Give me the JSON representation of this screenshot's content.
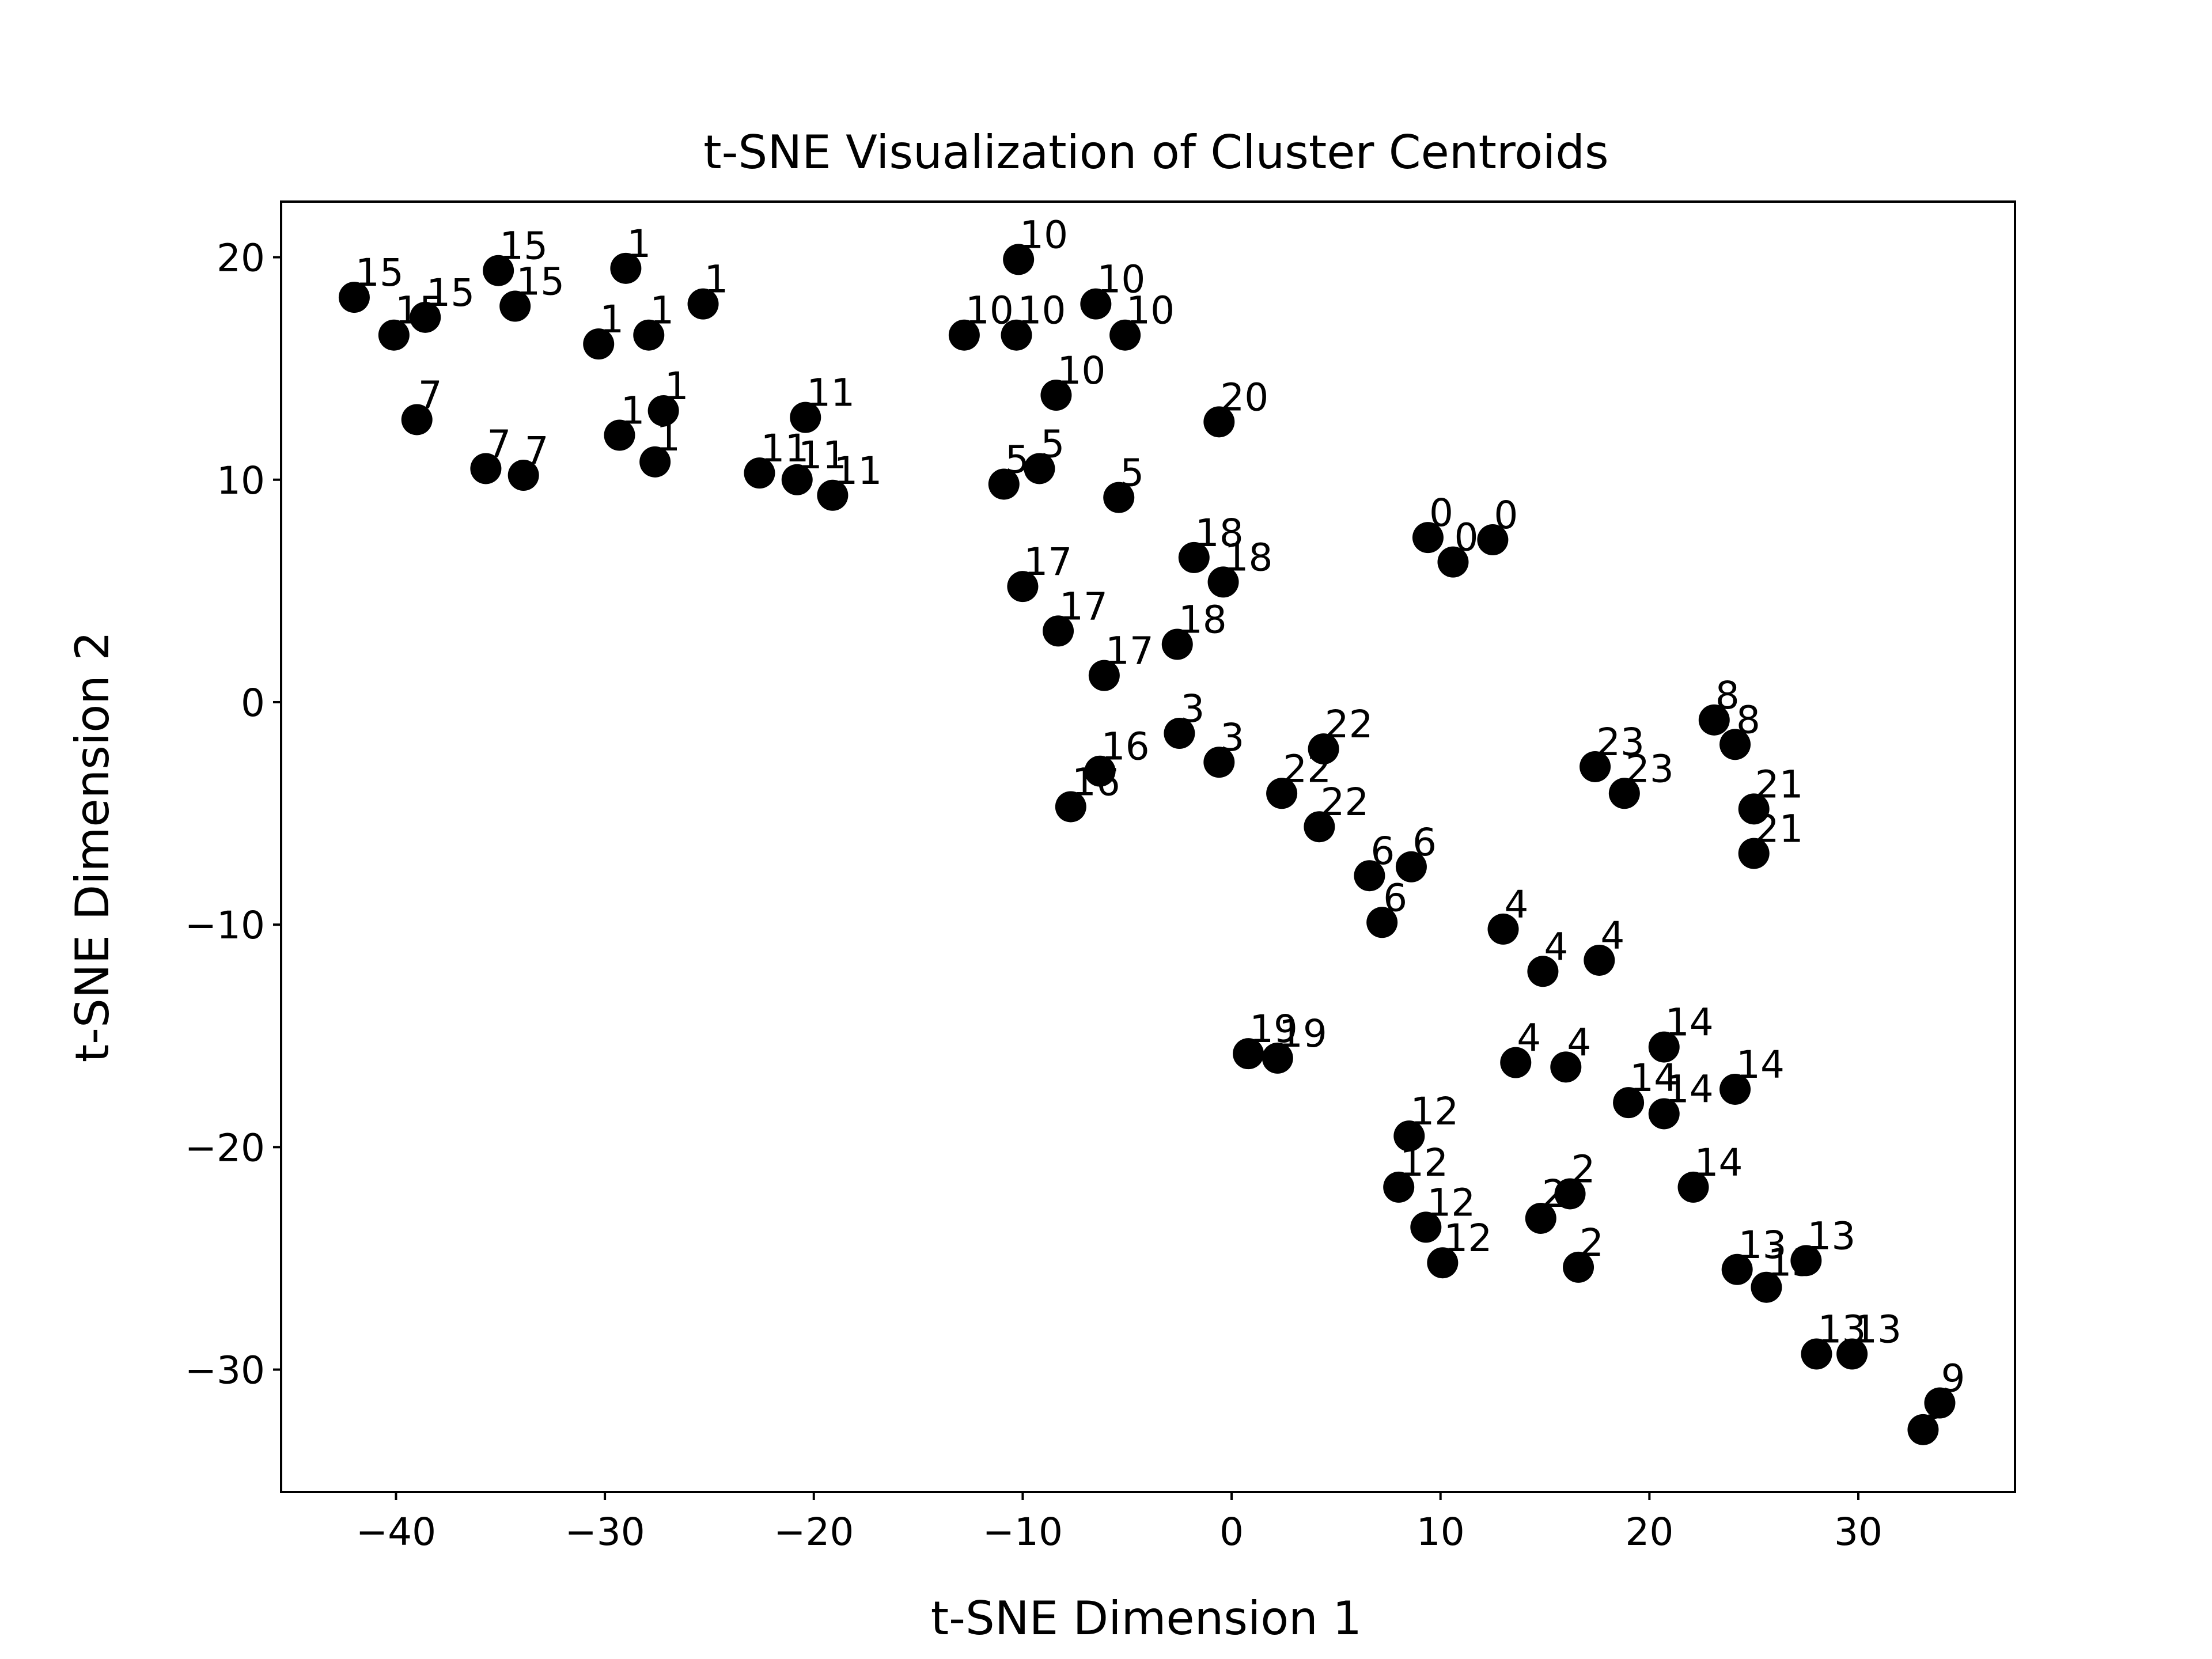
{
  "chart_data": {
    "type": "scatter",
    "title": "t-SNE Visualization of Cluster Centroids",
    "xlabel": "t-SNE Dimension 1",
    "ylabel": "t-SNE Dimension 2",
    "xlim": [
      -45.5,
      37.5
    ],
    "ylim": [
      -35.5,
      22.5
    ],
    "xticks": [
      -40,
      -30,
      -20,
      -10,
      0,
      10,
      20,
      30
    ],
    "yticks": [
      -30,
      -20,
      -10,
      0,
      10,
      20
    ],
    "xtick_labels": [
      "−40",
      "−30",
      "−20",
      "−10",
      "0",
      "10",
      "20",
      "30"
    ],
    "ytick_labels": [
      "−30",
      "−20",
      "−10",
      "0",
      "10",
      "20"
    ],
    "grid": false,
    "marker_color": "#000000",
    "points": [
      {
        "x": -42.0,
        "y": 18.2,
        "label": "15"
      },
      {
        "x": -40.1,
        "y": 16.5,
        "label": "15"
      },
      {
        "x": -38.6,
        "y": 17.3,
        "label": "15"
      },
      {
        "x": -35.1,
        "y": 19.4,
        "label": "15"
      },
      {
        "x": -34.3,
        "y": 17.8,
        "label": "15"
      },
      {
        "x": -29.0,
        "y": 19.5,
        "label": "1"
      },
      {
        "x": -25.3,
        "y": 17.9,
        "label": "1"
      },
      {
        "x": -30.3,
        "y": 16.1,
        "label": "1"
      },
      {
        "x": -27.9,
        "y": 16.5,
        "label": "1"
      },
      {
        "x": -27.2,
        "y": 13.1,
        "label": "1"
      },
      {
        "x": -29.3,
        "y": 12.0,
        "label": "1"
      },
      {
        "x": -27.6,
        "y": 10.8,
        "label": "1"
      },
      {
        "x": -39.0,
        "y": 12.7,
        "label": "7"
      },
      {
        "x": -35.7,
        "y": 10.5,
        "label": "7"
      },
      {
        "x": -33.9,
        "y": 10.2,
        "label": "7"
      },
      {
        "x": -20.4,
        "y": 12.8,
        "label": "11"
      },
      {
        "x": -22.6,
        "y": 10.3,
        "label": "11"
      },
      {
        "x": -20.8,
        "y": 10.0,
        "label": "11"
      },
      {
        "x": -19.1,
        "y": 9.3,
        "label": "11"
      },
      {
        "x": -10.2,
        "y": 19.9,
        "label": "10"
      },
      {
        "x": -6.5,
        "y": 17.9,
        "label": "10"
      },
      {
        "x": -12.8,
        "y": 16.5,
        "label": "10"
      },
      {
        "x": -10.3,
        "y": 16.5,
        "label": "10"
      },
      {
        "x": -5.1,
        "y": 16.5,
        "label": "10"
      },
      {
        "x": -8.4,
        "y": 13.8,
        "label": "10"
      },
      {
        "x": -0.6,
        "y": 12.6,
        "label": "20"
      },
      {
        "x": -9.2,
        "y": 10.5,
        "label": "5"
      },
      {
        "x": -10.9,
        "y": 9.8,
        "label": "5"
      },
      {
        "x": -5.4,
        "y": 9.2,
        "label": "5"
      },
      {
        "x": -1.8,
        "y": 6.5,
        "label": "18"
      },
      {
        "x": -0.4,
        "y": 5.4,
        "label": "18"
      },
      {
        "x": -2.6,
        "y": 2.6,
        "label": "18"
      },
      {
        "x": -10.0,
        "y": 5.2,
        "label": "17"
      },
      {
        "x": -8.3,
        "y": 3.2,
        "label": "17"
      },
      {
        "x": -6.1,
        "y": 1.2,
        "label": "17"
      },
      {
        "x": 9.4,
        "y": 7.4,
        "label": "0"
      },
      {
        "x": 12.5,
        "y": 7.3,
        "label": "0"
      },
      {
        "x": 10.6,
        "y": 6.3,
        "label": "0"
      },
      {
        "x": -2.5,
        "y": -1.4,
        "label": "3"
      },
      {
        "x": -0.6,
        "y": -2.7,
        "label": "3"
      },
      {
        "x": -6.3,
        "y": -3.1,
        "label": "16"
      },
      {
        "x": -7.7,
        "y": -4.7,
        "label": "16"
      },
      {
        "x": 4.4,
        "y": -2.1,
        "label": "22"
      },
      {
        "x": 2.4,
        "y": -4.1,
        "label": "22"
      },
      {
        "x": 4.2,
        "y": -5.6,
        "label": "22"
      },
      {
        "x": 8.6,
        "y": -7.4,
        "label": "6"
      },
      {
        "x": 6.6,
        "y": -7.8,
        "label": "6"
      },
      {
        "x": 7.2,
        "y": -9.9,
        "label": "6"
      },
      {
        "x": 23.1,
        "y": -0.8,
        "label": "8"
      },
      {
        "x": 24.1,
        "y": -1.9,
        "label": "8"
      },
      {
        "x": 17.4,
        "y": -2.9,
        "label": "23"
      },
      {
        "x": 18.8,
        "y": -4.1,
        "label": "23"
      },
      {
        "x": 25.0,
        "y": -4.8,
        "label": "21"
      },
      {
        "x": 25.0,
        "y": -6.8,
        "label": "21"
      },
      {
        "x": 13.0,
        "y": -10.2,
        "label": "4"
      },
      {
        "x": 14.9,
        "y": -12.1,
        "label": "4"
      },
      {
        "x": 17.6,
        "y": -11.6,
        "label": "4"
      },
      {
        "x": 13.6,
        "y": -16.2,
        "label": "4"
      },
      {
        "x": 16.0,
        "y": -16.4,
        "label": "4"
      },
      {
        "x": 0.8,
        "y": -15.8,
        "label": "19"
      },
      {
        "x": 2.2,
        "y": -16.0,
        "label": "19"
      },
      {
        "x": 20.7,
        "y": -15.5,
        "label": "14"
      },
      {
        "x": 24.1,
        "y": -17.4,
        "label": "14"
      },
      {
        "x": 19.0,
        "y": -18.0,
        "label": "14"
      },
      {
        "x": 20.7,
        "y": -18.5,
        "label": "14"
      },
      {
        "x": 22.1,
        "y": -21.8,
        "label": "14"
      },
      {
        "x": 8.5,
        "y": -19.5,
        "label": "12"
      },
      {
        "x": 8.0,
        "y": -21.8,
        "label": "12"
      },
      {
        "x": 9.3,
        "y": -23.6,
        "label": "12"
      },
      {
        "x": 10.1,
        "y": -25.2,
        "label": "12"
      },
      {
        "x": 16.2,
        "y": -22.1,
        "label": "2"
      },
      {
        "x": 14.8,
        "y": -23.2,
        "label": "2"
      },
      {
        "x": 16.6,
        "y": -25.4,
        "label": "2"
      },
      {
        "x": 27.5,
        "y": -25.1,
        "label": "13"
      },
      {
        "x": 24.2,
        "y": -25.5,
        "label": "13"
      },
      {
        "x": 25.6,
        "y": -26.3,
        "label": "13"
      },
      {
        "x": 29.7,
        "y": -29.3,
        "label": "13"
      },
      {
        "x": 28.0,
        "y": -29.3,
        "label": "13"
      },
      {
        "x": 33.9,
        "y": -31.5,
        "label": "9"
      },
      {
        "x": 33.1,
        "y": -32.7,
        "label": "9"
      }
    ]
  }
}
